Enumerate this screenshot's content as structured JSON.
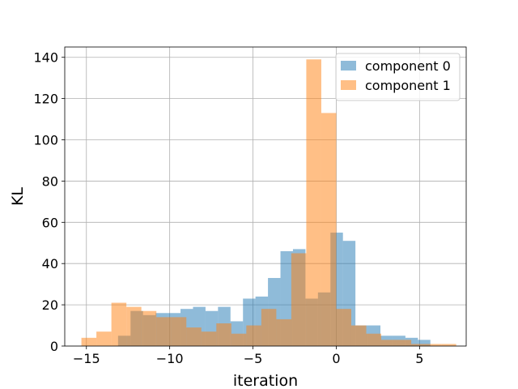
{
  "chart_data": {
    "type": "bar",
    "subtype": "overlapping-histogram",
    "xlabel": "iteration",
    "ylabel": "KL",
    "xlim": [
      -16.3,
      7.8
    ],
    "ylim": [
      0,
      145
    ],
    "xticks": [
      -15,
      -10,
      -5,
      0,
      5
    ],
    "yticks": [
      0,
      20,
      40,
      60,
      80,
      100,
      120,
      140
    ],
    "xtick_labels": [
      "−15",
      "−10",
      "−5",
      "0",
      "5"
    ],
    "ytick_labels": [
      "0",
      "20",
      "40",
      "60",
      "80",
      "100",
      "120",
      "140"
    ],
    "grid": true,
    "legend_position": "top-right",
    "series": [
      {
        "name": "component 0",
        "color": "#1f77b4",
        "bins": [
          {
            "x0": -13.1,
            "x1": -12.35,
            "count": 5
          },
          {
            "x0": -12.35,
            "x1": -11.6,
            "count": 17
          },
          {
            "x0": -11.6,
            "x1": -10.85,
            "count": 15
          },
          {
            "x0": -10.85,
            "x1": -10.1,
            "count": 16
          },
          {
            "x0": -10.1,
            "x1": -9.35,
            "count": 16
          },
          {
            "x0": -9.35,
            "x1": -8.6,
            "count": 18
          },
          {
            "x0": -8.6,
            "x1": -7.85,
            "count": 19
          },
          {
            "x0": -7.85,
            "x1": -7.1,
            "count": 17
          },
          {
            "x0": -7.1,
            "x1": -6.35,
            "count": 19
          },
          {
            "x0": -6.35,
            "x1": -5.6,
            "count": 12
          },
          {
            "x0": -5.6,
            "x1": -4.85,
            "count": 23
          },
          {
            "x0": -4.85,
            "x1": -4.1,
            "count": 24
          },
          {
            "x0": -4.1,
            "x1": -3.35,
            "count": 33
          },
          {
            "x0": -3.35,
            "x1": -2.6,
            "count": 46
          },
          {
            "x0": -2.6,
            "x1": -1.85,
            "count": 47
          },
          {
            "x0": -1.85,
            "x1": -1.1,
            "count": 23
          },
          {
            "x0": -1.1,
            "x1": -0.35,
            "count": 26
          },
          {
            "x0": -0.35,
            "x1": 0.4,
            "count": 55
          },
          {
            "x0": 0.4,
            "x1": 1.15,
            "count": 51
          },
          {
            "x0": 1.15,
            "x1": 1.9,
            "count": 10
          },
          {
            "x0": 1.9,
            "x1": 2.65,
            "count": 10
          },
          {
            "x0": 2.65,
            "x1": 3.4,
            "count": 5
          },
          {
            "x0": 3.4,
            "x1": 4.15,
            "count": 5
          },
          {
            "x0": 4.15,
            "x1": 4.9,
            "count": 4
          },
          {
            "x0": 4.9,
            "x1": 5.65,
            "count": 3
          }
        ]
      },
      {
        "name": "component 1",
        "color": "#ff7f0e",
        "bins": [
          {
            "x0": -15.3,
            "x1": -14.4,
            "count": 4
          },
          {
            "x0": -14.4,
            "x1": -13.5,
            "count": 7
          },
          {
            "x0": -13.5,
            "x1": -12.6,
            "count": 21
          },
          {
            "x0": -12.6,
            "x1": -11.7,
            "count": 19
          },
          {
            "x0": -11.7,
            "x1": -10.8,
            "count": 17
          },
          {
            "x0": -10.8,
            "x1": -9.9,
            "count": 14
          },
          {
            "x0": -9.9,
            "x1": -9.0,
            "count": 14
          },
          {
            "x0": -9.0,
            "x1": -8.1,
            "count": 9
          },
          {
            "x0": -8.1,
            "x1": -7.2,
            "count": 7
          },
          {
            "x0": -7.2,
            "x1": -6.3,
            "count": 11
          },
          {
            "x0": -6.3,
            "x1": -5.4,
            "count": 6
          },
          {
            "x0": -5.4,
            "x1": -4.5,
            "count": 10
          },
          {
            "x0": -4.5,
            "x1": -3.6,
            "count": 18
          },
          {
            "x0": -3.6,
            "x1": -2.7,
            "count": 13
          },
          {
            "x0": -2.7,
            "x1": -1.8,
            "count": 45
          },
          {
            "x0": -1.8,
            "x1": -0.9,
            "count": 139
          },
          {
            "x0": -0.9,
            "x1": 0.0,
            "count": 113
          },
          {
            "x0": 0.0,
            "x1": 0.9,
            "count": 18
          },
          {
            "x0": 0.9,
            "x1": 1.8,
            "count": 10
          },
          {
            "x0": 1.8,
            "x1": 2.7,
            "count": 6
          },
          {
            "x0": 2.7,
            "x1": 3.6,
            "count": 3
          },
          {
            "x0": 3.6,
            "x1": 4.5,
            "count": 3
          },
          {
            "x0": 4.5,
            "x1": 5.4,
            "count": 1
          },
          {
            "x0": 5.4,
            "x1": 6.3,
            "count": 1
          },
          {
            "x0": 6.3,
            "x1": 7.2,
            "count": 1
          }
        ]
      }
    ]
  }
}
